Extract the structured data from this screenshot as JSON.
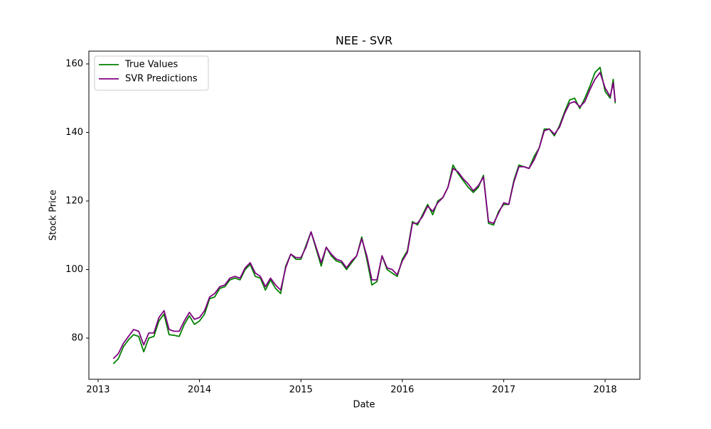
{
  "chart_data": {
    "type": "line",
    "title": "NEE - SVR",
    "x_label": "Date",
    "y_label": "Stock Price",
    "x": [
      2013.15,
      2013.2,
      2013.25,
      2013.3,
      2013.35,
      2013.4,
      2013.45,
      2013.5,
      2013.55,
      2013.6,
      2013.65,
      2013.7,
      2013.75,
      2013.8,
      2013.85,
      2013.9,
      2013.95,
      2014.0,
      2014.05,
      2014.1,
      2014.15,
      2014.2,
      2014.25,
      2014.3,
      2014.35,
      2014.4,
      2014.45,
      2014.5,
      2014.55,
      2014.6,
      2014.65,
      2014.7,
      2014.75,
      2014.8,
      2014.85,
      2014.9,
      2014.95,
      2015.0,
      2015.05,
      2015.1,
      2015.15,
      2015.2,
      2015.25,
      2015.3,
      2015.35,
      2015.4,
      2015.45,
      2015.5,
      2015.55,
      2015.6,
      2015.65,
      2015.7,
      2015.75,
      2015.8,
      2015.85,
      2015.9,
      2015.95,
      2016.0,
      2016.05,
      2016.1,
      2016.15,
      2016.2,
      2016.25,
      2016.3,
      2016.35,
      2016.4,
      2016.45,
      2016.5,
      2016.55,
      2016.6,
      2016.65,
      2016.7,
      2016.75,
      2016.8,
      2016.85,
      2016.9,
      2016.95,
      2017.0,
      2017.05,
      2017.1,
      2017.15,
      2017.2,
      2017.25,
      2017.3,
      2017.35,
      2017.4,
      2017.45,
      2017.5,
      2017.55,
      2017.6,
      2017.65,
      2017.7,
      2017.75,
      2017.8,
      2017.85,
      2017.9,
      2017.95,
      2018.0,
      2018.05,
      2018.08,
      2018.1
    ],
    "series": [
      {
        "name": "True Values",
        "color": "#008000",
        "values": [
          72.5,
          74,
          77.5,
          79.5,
          81,
          80.5,
          76,
          80,
          80.5,
          85,
          87,
          81,
          80.8,
          80.5,
          84,
          86.5,
          84,
          85,
          87,
          91.5,
          92,
          94.5,
          95,
          97,
          97.5,
          97,
          100,
          101.5,
          98,
          97.5,
          94,
          97,
          94.5,
          93,
          101,
          104.5,
          103,
          103,
          107,
          111,
          106,
          101,
          106.5,
          104,
          102.5,
          102,
          100,
          102,
          104,
          109.5,
          103,
          95.5,
          96.5,
          104,
          100,
          99,
          98,
          103,
          105.5,
          114,
          113,
          116,
          119,
          116,
          120,
          121,
          124,
          130.5,
          128,
          126,
          124,
          122.5,
          124,
          127.5,
          113.5,
          113,
          117,
          119,
          119,
          126,
          130.5,
          130,
          129.5,
          133,
          135.5,
          141,
          141,
          139,
          142,
          146,
          149.5,
          150,
          147,
          150,
          153.5,
          157.5,
          159,
          152,
          150,
          155.5,
          148.5
        ]
      },
      {
        "name": "SVR Predictions",
        "color": "#800080",
        "values": [
          74,
          75.5,
          78.5,
          80.5,
          82.5,
          82,
          78,
          81.5,
          81.5,
          86,
          88,
          82.5,
          82,
          82,
          85,
          87.5,
          85.5,
          86,
          88,
          92,
          93,
          95,
          95.5,
          97.5,
          98,
          97.5,
          100.5,
          102,
          99,
          98,
          95,
          97.5,
          95.5,
          94,
          100.5,
          104.5,
          103.5,
          103.5,
          106.5,
          111,
          106.5,
          102,
          106.5,
          104.5,
          103,
          102.5,
          100.5,
          102.5,
          104,
          109,
          104,
          97,
          97,
          104,
          100.5,
          100,
          98.5,
          102.5,
          105,
          113.5,
          113.5,
          115.5,
          118.5,
          117,
          119.5,
          121,
          124,
          129.5,
          128.5,
          126.5,
          125,
          123,
          124.5,
          127,
          114,
          113.5,
          116.5,
          119.5,
          119,
          125.5,
          130,
          130,
          129.5,
          132,
          135.5,
          140.5,
          141,
          139.5,
          141.5,
          145.5,
          148.5,
          149,
          147.5,
          149,
          152.5,
          155.5,
          157.5,
          153,
          150.5,
          154.5,
          149
        ]
      }
    ],
    "xlim": [
      2012.909,
      2018.343
    ],
    "xticks": [
      2013,
      2014,
      2015,
      2016,
      2017,
      2018
    ],
    "ylim": [
      67.98,
      163.73
    ],
    "yticks": [
      80,
      100,
      120,
      140,
      160
    ],
    "legend": "upper left"
  }
}
